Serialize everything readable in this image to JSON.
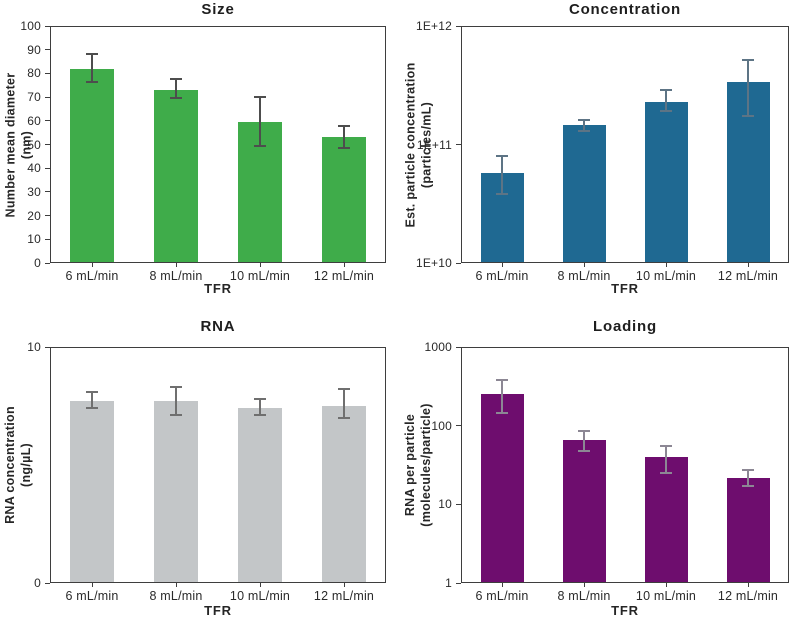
{
  "figure": {
    "background": "#ffffff",
    "layout": "2x2 grid of bar charts"
  },
  "chart_data": [
    {
      "id": "size",
      "type": "bar",
      "title": "Size",
      "xlabel": "TFR",
      "ylabel": "Number mean diameter",
      "ylabel_unit": "(nm)",
      "scale": "linear",
      "ylim": [
        0,
        100
      ],
      "ytick_values": [
        0,
        10,
        20,
        30,
        40,
        50,
        60,
        70,
        80,
        90,
        100
      ],
      "ytick_labels": [
        "0",
        "10",
        "20",
        "30",
        "40",
        "50",
        "60",
        "70",
        "80",
        "90",
        "100"
      ],
      "categories": [
        "6 mL/min",
        "8 mL/min",
        "10 mL/min",
        "12 mL/min"
      ],
      "values": [
        82,
        73,
        59.5,
        53
      ],
      "error_low": [
        76.5,
        69.5,
        49.5,
        48.5
      ],
      "error_high": [
        88,
        77.5,
        70,
        58
      ],
      "bar_color": "#3fac4a",
      "error_color": "#4d4d4d",
      "grid": false,
      "legend": "none"
    },
    {
      "id": "concentration",
      "type": "bar",
      "title": "Concentration",
      "xlabel": "TFR",
      "ylabel": "Est. particle concentration",
      "ylabel_unit": "(particles/mL)",
      "scale": "log",
      "ylim": [
        10000000000.0,
        1000000000000.0
      ],
      "ytick_values": [
        10000000000.0,
        100000000000.0,
        1000000000000.0
      ],
      "ytick_labels": [
        "1E+10",
        "1E+11",
        "1E+12"
      ],
      "categories": [
        "6 mL/min",
        "8 mL/min",
        "10 mL/min",
        "12 mL/min"
      ],
      "values": [
        57000000000.0,
        145000000000.0,
        230000000000.0,
        340000000000.0
      ],
      "error_low": [
        38000000000.0,
        130000000000.0,
        190000000000.0,
        175000000000.0
      ],
      "error_high": [
        80000000000.0,
        160000000000.0,
        290000000000.0,
        520000000000.0
      ],
      "bar_color": "#1f6992",
      "error_color": "#5d7485",
      "grid": false,
      "legend": "none"
    },
    {
      "id": "rna",
      "type": "bar",
      "title": "RNA",
      "xlabel": "TFR",
      "ylabel": "RNA concentration",
      "ylabel_unit": "(ng/µL)",
      "scale": "linear",
      "ylim": [
        0,
        10
      ],
      "ytick_values": [
        0,
        10
      ],
      "ytick_labels": [
        "0",
        "10"
      ],
      "categories": [
        "6 mL/min",
        "8 mL/min",
        "10 mL/min",
        "12 mL/min"
      ],
      "values": [
        7.7,
        7.7,
        7.4,
        7.5
      ],
      "error_low": [
        7.4,
        7.1,
        7.1,
        7.0
      ],
      "error_high": [
        8.1,
        8.3,
        7.8,
        8.2
      ],
      "bar_color": "#c3c6c8",
      "error_color": "#6f6f6f",
      "grid": false,
      "legend": "none"
    },
    {
      "id": "loading",
      "type": "bar",
      "title": "Loading",
      "xlabel": "TFR",
      "ylabel": "RNA per particle",
      "ylabel_unit": "(molecules/particle)",
      "scale": "log",
      "ylim": [
        1,
        1000
      ],
      "ytick_values": [
        1,
        10,
        100,
        1000
      ],
      "ytick_labels": [
        "1",
        "10",
        "100",
        "1000"
      ],
      "categories": [
        "6 mL/min",
        "8 mL/min",
        "10 mL/min",
        "12 mL/min"
      ],
      "values": [
        250,
        65,
        40,
        21.5
      ],
      "error_low": [
        145,
        47,
        25,
        17
      ],
      "error_high": [
        380,
        85,
        55,
        27
      ],
      "bar_color": "#6e0d6e",
      "error_color": "#8c8794",
      "grid": false,
      "legend": "none"
    }
  ]
}
